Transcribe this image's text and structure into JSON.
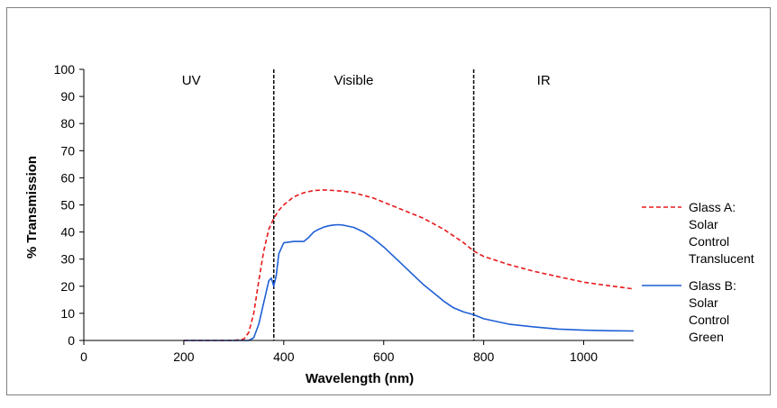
{
  "chart_data": {
    "type": "line",
    "title": "",
    "xlabel": "Wavelength (nm)",
    "ylabel": "% Transmission",
    "xlim": [
      0,
      1100
    ],
    "ylim": [
      0,
      100
    ],
    "xticks": [
      0,
      200,
      400,
      600,
      800,
      1000
    ],
    "yticks": [
      0,
      10,
      20,
      30,
      40,
      50,
      60,
      70,
      80,
      90,
      100
    ],
    "grid": false,
    "legend": "right",
    "region_dividers": [
      380,
      780
    ],
    "regions": [
      {
        "label": "UV",
        "x": 215
      },
      {
        "label": "Visible",
        "x": 540
      },
      {
        "label": "IR",
        "x": 920
      }
    ],
    "series": [
      {
        "name_lines": [
          "Glass A:",
          "Solar",
          "Control",
          "Translucent"
        ],
        "color": "#e8191c",
        "style": "dashed",
        "x": [
          200,
          300,
          320,
          330,
          340,
          350,
          360,
          370,
          380,
          390,
          400,
          420,
          440,
          460,
          480,
          500,
          520,
          540,
          560,
          580,
          600,
          620,
          640,
          660,
          680,
          700,
          720,
          740,
          760,
          780,
          800,
          850,
          900,
          950,
          1000,
          1050,
          1100
        ],
        "y": [
          0,
          0,
          0.5,
          3,
          10,
          22,
          33,
          41,
          45,
          48,
          50,
          53,
          54.5,
          55.3,
          55.5,
          55.3,
          55,
          54.5,
          53.5,
          52.5,
          51,
          49.5,
          48,
          46.5,
          45,
          43,
          41,
          38.5,
          36,
          33,
          31,
          28,
          25.5,
          23.5,
          21.5,
          20.2,
          19
        ]
      },
      {
        "name_lines": [
          "Glass B:",
          "Solar",
          "Control",
          "Green"
        ],
        "color": "#1f5fd6",
        "style": "solid",
        "x": [
          200,
          330,
          340,
          350,
          360,
          370,
          375,
          380,
          385,
          390,
          400,
          420,
          440,
          450,
          460,
          470,
          480,
          490,
          500,
          510,
          520,
          540,
          560,
          580,
          600,
          620,
          640,
          660,
          680,
          700,
          720,
          740,
          760,
          780,
          800,
          850,
          900,
          950,
          1000,
          1050,
          1100
        ],
        "y": [
          0,
          0,
          1,
          6,
          14,
          22,
          23,
          20,
          24,
          32,
          36,
          36.5,
          36.5,
          38,
          40,
          41,
          41.8,
          42.3,
          42.6,
          42.7,
          42.5,
          41.7,
          40,
          37.5,
          34.5,
          31,
          27.5,
          24,
          20.5,
          17.5,
          14.5,
          12,
          10.5,
          9.5,
          8,
          6,
          5,
          4.2,
          3.8,
          3.6,
          3.5
        ]
      }
    ]
  }
}
